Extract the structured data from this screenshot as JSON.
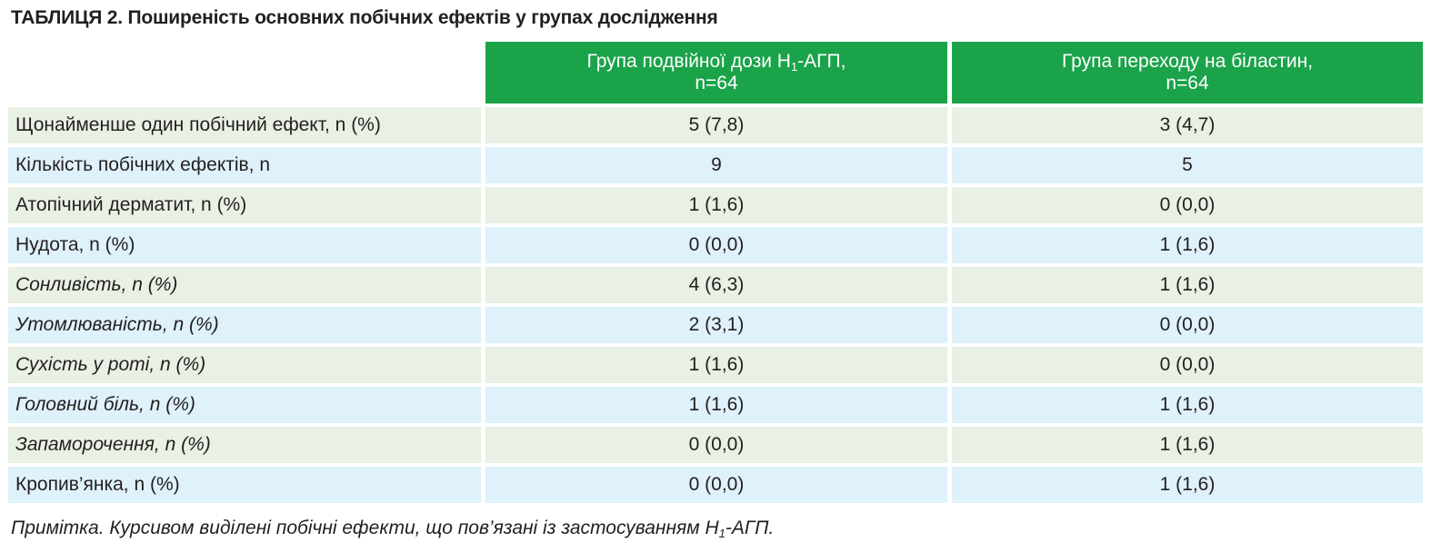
{
  "title": "ТАБЛИЦЯ 2. Поширеність основних побічних ефектів у групах дослідження",
  "columns": [
    {
      "pre": "Група подвійної дози Н",
      "sub": "1",
      "post": "-АГП,",
      "n": "n=64"
    },
    {
      "pre": "Група переходу на біластин,",
      "sub": "",
      "post": "",
      "n": "n=64"
    }
  ],
  "rows": [
    {
      "label": "Щонайменше один побічний ефект, n (%)",
      "italic": false,
      "v1": "5 (7,8)",
      "v2": "3 (4,7)"
    },
    {
      "label": "Кількість побічних ефектів, n",
      "italic": false,
      "v1": "9",
      "v2": "5"
    },
    {
      "label": "Атопічний дерматит, n (%)",
      "italic": false,
      "v1": "1 (1,6)",
      "v2": "0 (0,0)"
    },
    {
      "label": "Нудота, n (%)",
      "italic": false,
      "v1": "0 (0,0)",
      "v2": "1 (1,6)"
    },
    {
      "label": "Сонливість, n (%)",
      "italic": true,
      "v1": "4 (6,3)",
      "v2": "1 (1,6)"
    },
    {
      "label": "Утомлюваність, n (%)",
      "italic": true,
      "v1": "2 (3,1)",
      "v2": "0 (0,0)"
    },
    {
      "label": "Сухість у роті, n (%)",
      "italic": true,
      "v1": "1 (1,6)",
      "v2": "0 (0,0)"
    },
    {
      "label": "Головний біль, n (%)",
      "italic": true,
      "v1": "1 (1,6)",
      "v2": "1 (1,6)"
    },
    {
      "label": "Запаморочення, n (%)",
      "italic": true,
      "v1": "0 (0,0)",
      "v2": "1 (1,6)"
    },
    {
      "label": "Кропив’янка, n (%)",
      "italic": false,
      "v1": "0 (0,0)",
      "v2": "1 (1,6)"
    }
  ],
  "note": {
    "pre": "Примітка. Курсивом виділені побічні ефекти, що пов’язані із застосуванням Н",
    "sub": "1",
    "post": "-АГП."
  },
  "colors": {
    "header": "#1ba34a",
    "row_green": "#e9f0e4",
    "row_blue": "#dff1fb"
  }
}
